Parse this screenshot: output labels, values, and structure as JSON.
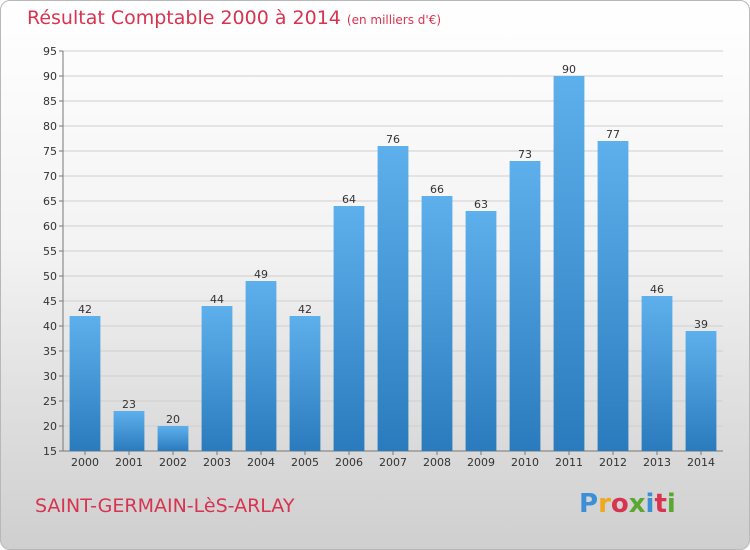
{
  "header": {
    "title": "Résultat Comptable 2000 à 2014",
    "subtitle": "(en milliers d'€)"
  },
  "footer": {
    "place": "SAINT-GERMAIN-LèS-ARLAY",
    "logo": "Proxiti",
    "logo_colors": [
      "#3a8fd6",
      "#f0a81e",
      "#d8334f",
      "#5aa832",
      "#3a8fd6",
      "#d8334f",
      "#5aa832"
    ]
  },
  "chart_data": {
    "type": "bar",
    "title": "Résultat Comptable 2000 à 2014",
    "subtitle": "(en milliers d'€)",
    "categories": [
      "2000",
      "2001",
      "2002",
      "2003",
      "2004",
      "2005",
      "2006",
      "2007",
      "2008",
      "2009",
      "2010",
      "2011",
      "2012",
      "2013",
      "2014"
    ],
    "values": [
      42,
      23,
      20,
      44,
      49,
      42,
      64,
      76,
      66,
      63,
      73,
      90,
      77,
      46,
      39
    ],
    "ylim": [
      15,
      95
    ],
    "yticks": [
      15,
      20,
      25,
      30,
      35,
      40,
      45,
      50,
      55,
      60,
      65,
      70,
      75,
      80,
      85,
      90,
      95
    ],
    "grid": true,
    "bar_color_top": "#5eb0ec",
    "bar_color_bottom": "#2a7bbd",
    "label_color": "#333333"
  }
}
